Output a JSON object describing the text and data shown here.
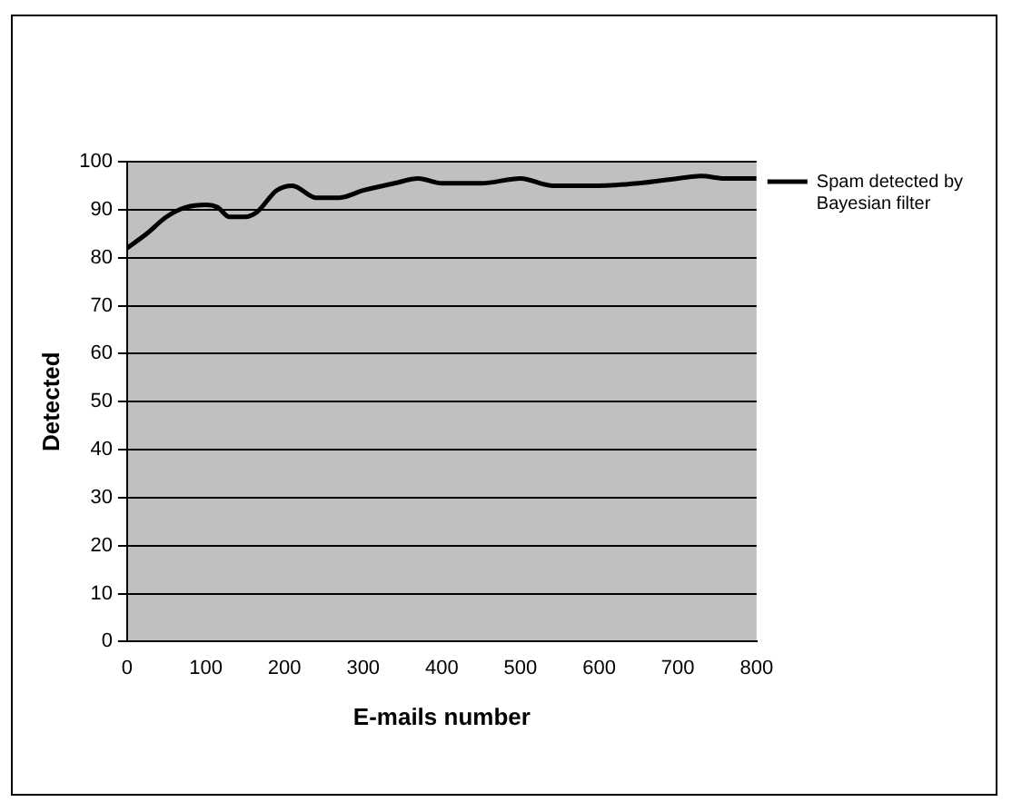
{
  "chart_data": {
    "type": "line",
    "xlabel": "E-mails number",
    "ylabel": "Detected",
    "x": [
      0,
      25,
      50,
      75,
      100,
      115,
      130,
      150,
      165,
      190,
      210,
      240,
      270,
      300,
      340,
      370,
      400,
      450,
      500,
      540,
      600,
      650,
      700,
      730,
      760,
      800
    ],
    "series": [
      {
        "name": "Spam detected by Bayesian filter",
        "color": "#000000",
        "values": [
          82,
          85,
          88.5,
          90.5,
          91,
          90.5,
          88.5,
          88.5,
          89.5,
          94,
          95,
          92.5,
          92.5,
          94,
          95.5,
          96.5,
          95.5,
          95.5,
          96.5,
          95,
          95,
          95.5,
          96.5,
          97,
          96.5,
          96.5
        ]
      }
    ],
    "xlim": [
      0,
      800
    ],
    "xticks": [
      0,
      100,
      200,
      300,
      400,
      500,
      600,
      700,
      800
    ],
    "ylim": [
      0,
      100
    ],
    "yticks": [
      0,
      10,
      20,
      30,
      40,
      50,
      60,
      70,
      80,
      90,
      100
    ],
    "grid": "y",
    "legend": "right",
    "marker": "none",
    "line_style": "solid"
  }
}
